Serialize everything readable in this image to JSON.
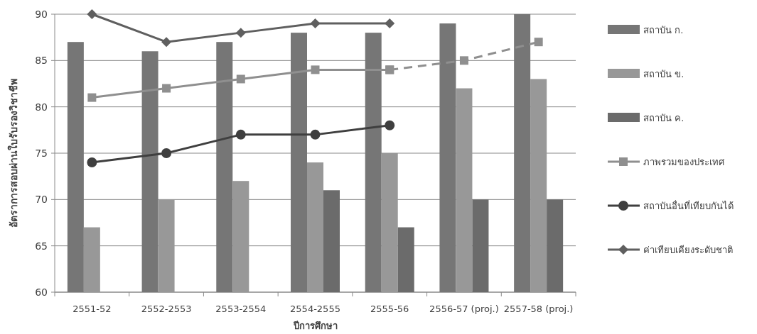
{
  "chart_data": {
    "type": "bar",
    "xlabel": "ปีการศึกษา",
    "ylabel": "อัตราการสอบผ่านใบรับรองวิชาชีพ",
    "categories": [
      "2551-52",
      "2552-2553",
      "2553-2554",
      "2554-2555",
      "2555-56",
      "2556-57 (proj.)",
      "2557-58 (proj.)"
    ],
    "series": [
      {
        "name": "สถาบัน ก.",
        "color": "#767676",
        "values": [
          87,
          86,
          87,
          88,
          88,
          89,
          90
        ]
      },
      {
        "name": "สถาบัน ข.",
        "color": "#989898",
        "values": [
          67,
          70,
          72,
          74,
          75,
          82,
          83
        ]
      },
      {
        "name": "สถาบัน ค.",
        "color": "#6b6b6b",
        "values": [
          null,
          null,
          null,
          71,
          67,
          70,
          70
        ]
      },
      {
        "name": "ภาพรวมของประเทศ",
        "type": "line",
        "color": "#8f8f8f",
        "marker": "square",
        "line_style": "solid",
        "values": [
          81,
          82,
          83,
          84,
          84,
          null,
          null
        ]
      },
      {
        "type": "line",
        "color": "#8f8f8f",
        "marker": "square",
        "line_style": "dashed",
        "values": [
          null,
          null,
          null,
          null,
          84,
          85,
          87
        ]
      },
      {
        "name": "สถาบันอื่นที่เทียบกันได้",
        "type": "line",
        "color": "#3f3f3f",
        "marker": "circle",
        "line_style": "solid",
        "values": [
          74,
          75,
          77,
          77,
          78,
          null,
          null
        ]
      },
      {
        "name": "ค่าเทียบเคียงระดับชาติ",
        "type": "line",
        "color": "#5f5f5f",
        "marker": "diamond",
        "line_style": "solid",
        "values": [
          90,
          87,
          88,
          89,
          89,
          null,
          null
        ]
      }
    ],
    "ylim": [
      60,
      90
    ],
    "yticks": [
      60,
      65,
      70,
      75,
      80,
      85,
      90
    ],
    "grid": "y",
    "legend": "right"
  }
}
